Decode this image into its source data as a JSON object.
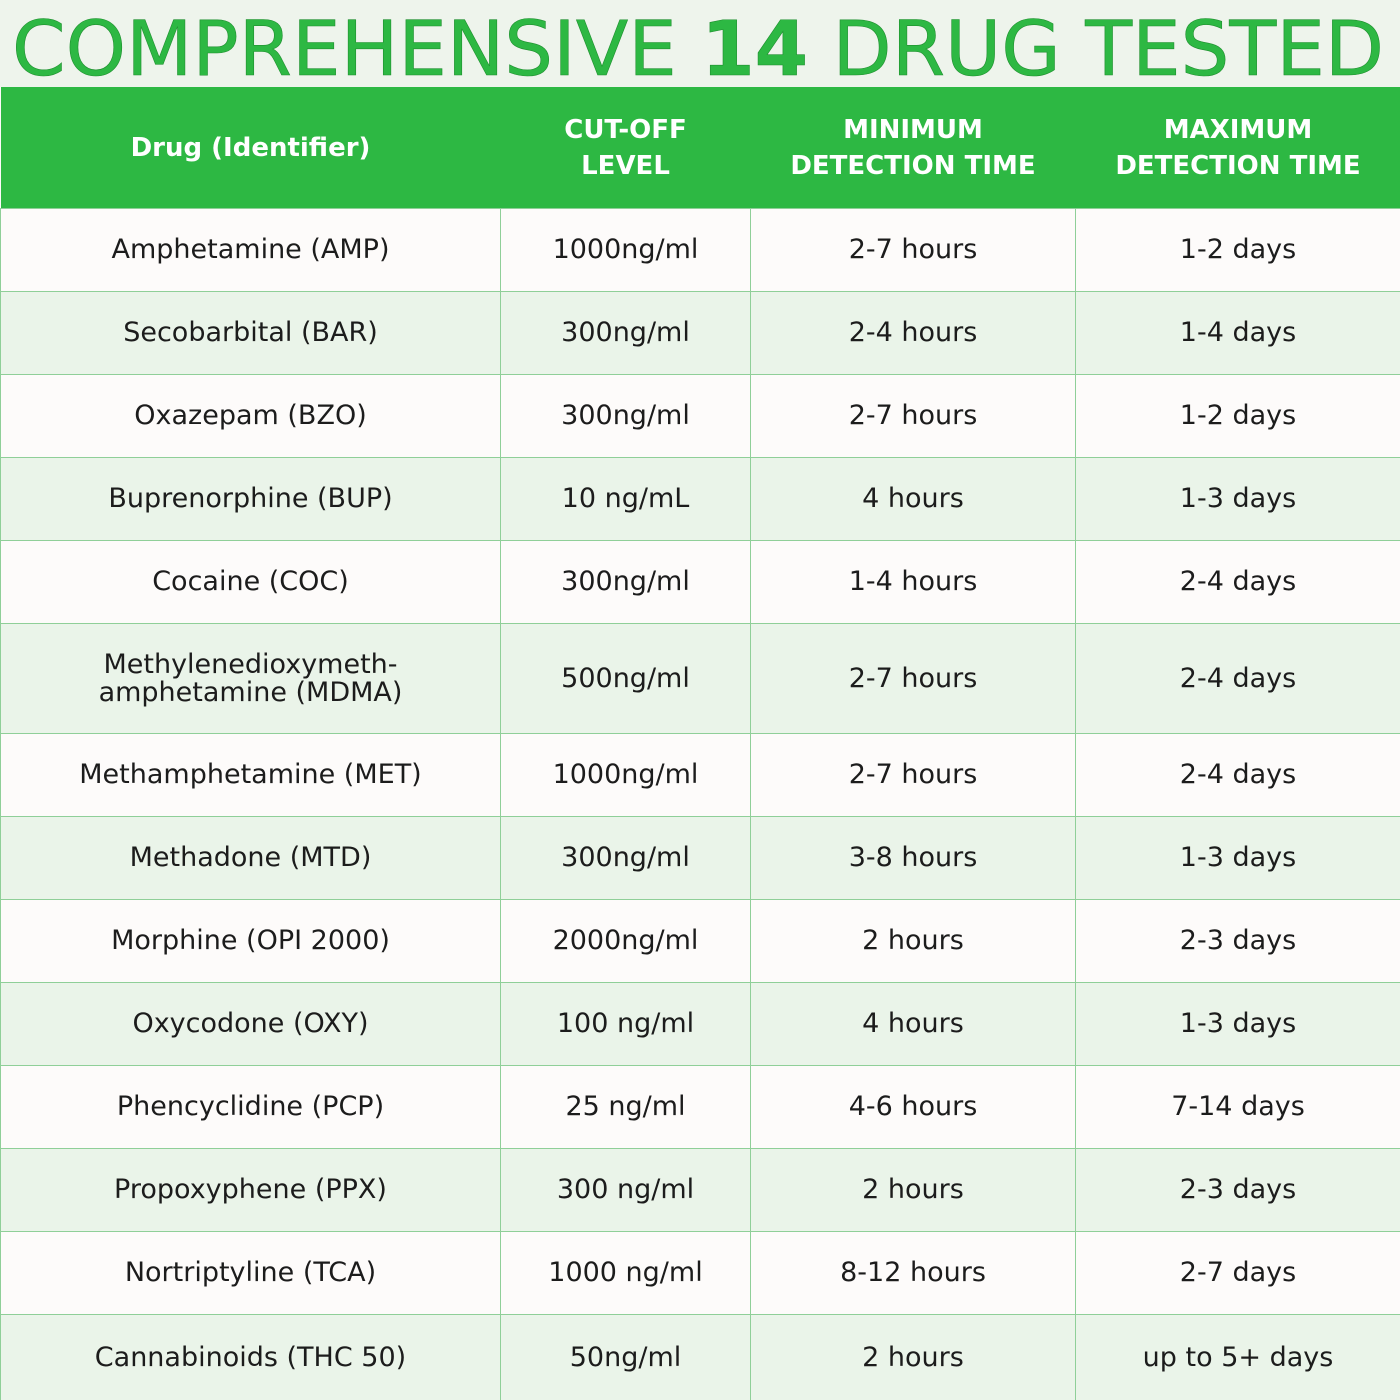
{
  "header": {
    "title_before": "COMPREHENSIVE",
    "title_number": "14",
    "title_after": "DRUG TESTED"
  },
  "table": {
    "columns": [
      [
        "Drug (Identifier)"
      ],
      [
        "CUT-OFF",
        "LEVEL"
      ],
      [
        "MINIMUM",
        "DETECTION TIME"
      ],
      [
        "MAXIMUM",
        "DETECTION TIME"
      ]
    ],
    "rows": [
      [
        [
          "Amphetamine (AMP)"
        ],
        [
          "1000ng/ml"
        ],
        [
          "2-7 hours"
        ],
        [
          "1-2 days"
        ]
      ],
      [
        [
          "Secobarbital (BAR)"
        ],
        [
          "300ng/ml"
        ],
        [
          "2-4 hours"
        ],
        [
          "1-4 days"
        ]
      ],
      [
        [
          "Oxazepam (BZO)"
        ],
        [
          "300ng/ml"
        ],
        [
          "2-7 hours"
        ],
        [
          "1-2 days"
        ]
      ],
      [
        [
          "Buprenorphine (BUP)"
        ],
        [
          "10 ng/mL"
        ],
        [
          "4 hours"
        ],
        [
          "1-3 days"
        ]
      ],
      [
        [
          "Cocaine (COC)"
        ],
        [
          "300ng/ml"
        ],
        [
          "1-4 hours"
        ],
        [
          "2-4 days"
        ]
      ],
      [
        [
          "Methylenedioxymeth-",
          "amphetamine (MDMA)"
        ],
        [
          "500ng/ml"
        ],
        [
          "2-7 hours"
        ],
        [
          "2-4 days"
        ]
      ],
      [
        [
          "Methamphetamine (MET)"
        ],
        [
          "1000ng/ml"
        ],
        [
          "2-7 hours"
        ],
        [
          "2-4 days"
        ]
      ],
      [
        [
          "Methadone (MTD)"
        ],
        [
          "300ng/ml"
        ],
        [
          "3-8 hours"
        ],
        [
          "1-3 days"
        ]
      ],
      [
        [
          "Morphine (OPI 2000)"
        ],
        [
          "2000ng/ml"
        ],
        [
          "2 hours"
        ],
        [
          "2-3 days"
        ]
      ],
      [
        [
          "Oxycodone (OXY)"
        ],
        [
          "100 ng/ml"
        ],
        [
          "4 hours"
        ],
        [
          "1-3 days"
        ]
      ],
      [
        [
          "Phencyclidine (PCP)"
        ],
        [
          "25 ng/ml"
        ],
        [
          "4-6 hours"
        ],
        [
          "7-14 days"
        ]
      ],
      [
        [
          "Propoxyphene (PPX)"
        ],
        [
          "300 ng/ml"
        ],
        [
          "2 hours"
        ],
        [
          "2-3 days"
        ]
      ],
      [
        [
          "Nortriptyline (TCA)"
        ],
        [
          "1000 ng/ml"
        ],
        [
          "8-12 hours"
        ],
        [
          "2-7 days"
        ]
      ],
      [
        [
          "Cannabinoids (THC 50)"
        ],
        [
          "50ng/ml"
        ],
        [
          "2 hours"
        ],
        [
          "up to 5+ days"
        ]
      ]
    ]
  }
}
